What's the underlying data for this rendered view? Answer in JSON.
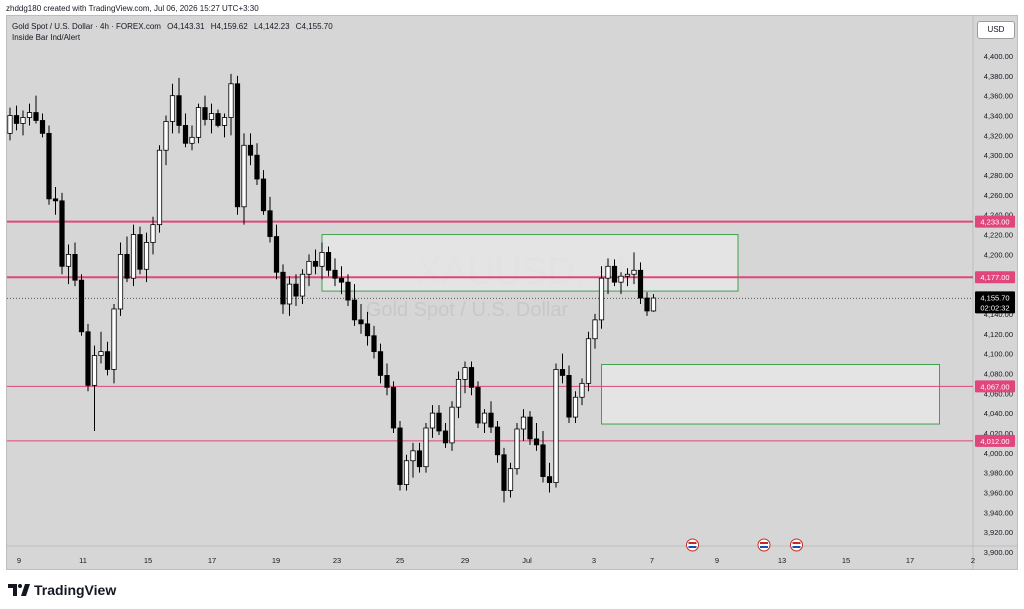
{
  "header": {
    "created_line": "zhddg180 created with TradingView.com, Jul 06, 2026 15:27 UTC+3:30",
    "symbol_line": "Gold Spot / U.S. Dollar · 4h · FOREX.com",
    "ohlc": {
      "o": "O4,143.31",
      "h": "H4,159.62",
      "l": "L4,142.23",
      "c": "C4,155.70"
    },
    "indicator": "Inside Bar Ind/Alert",
    "currency_button": "USD"
  },
  "watermark": {
    "symbol": "XAUUSD, 4h",
    "name": "Gold Spot / U.S. Dollar"
  },
  "footer": {
    "brand": "TradingView"
  },
  "colors": {
    "level_line": "#e0457b",
    "zone_border": "#3fa34d",
    "candle": "#000000",
    "background": "#d6d6d6"
  },
  "chart_data": {
    "type": "candlestick",
    "x_labels": [
      "9",
      "11",
      "15",
      "17",
      "19",
      "23",
      "25",
      "29",
      "Jul",
      "3",
      "7",
      "9",
      "13",
      "15",
      "17",
      "2"
    ],
    "y_ticks": [
      "4,400.00",
      "4,380.00",
      "4,360.00",
      "4,340.00",
      "4,320.00",
      "4,300.00",
      "4,280.00",
      "4,260.00",
      "4,240.00",
      "4,220.00",
      "4,200.00",
      "4,180.00",
      "4,160.00",
      "4,140.00",
      "4,120.00",
      "4,100.00",
      "4,080.00",
      "4,060.00",
      "4,040.00",
      "4,020.00",
      "4,000.00",
      "3,980.00",
      "3,960.00",
      "3,940.00",
      "3,920.00",
      "3,900.00"
    ],
    "ylim": [
      3900,
      4400
    ],
    "levels": [
      {
        "value": 4233,
        "label": "4,233.00"
      },
      {
        "value": 4177,
        "label": "4,177.00"
      },
      {
        "value": 4067,
        "label": "4,067.00"
      },
      {
        "value": 4012,
        "label": "4,012.00"
      }
    ],
    "last_price": {
      "value": 4155.7,
      "label": "4,155.70",
      "countdown": "02:02:32"
    },
    "zones": [
      {
        "from_index": 48,
        "to_index": 112,
        "top": 4220,
        "bottom": 4163
      },
      {
        "from_index": 91,
        "to_index": 143,
        "top": 4089,
        "bottom": 4029
      }
    ],
    "events": [
      {
        "index": 105
      },
      {
        "index": 116
      },
      {
        "index": 121
      }
    ],
    "candles": [
      [
        4322,
        4348,
        4315,
        4340
      ],
      [
        4340,
        4350,
        4325,
        4332
      ],
      [
        4332,
        4345,
        4320,
        4338
      ],
      [
        4338,
        4352,
        4330,
        4343
      ],
      [
        4343,
        4360,
        4332,
        4335
      ],
      [
        4335,
        4342,
        4318,
        4322
      ],
      [
        4322,
        4330,
        4250,
        4256
      ],
      [
        4256,
        4268,
        4240,
        4254
      ],
      [
        4254,
        4262,
        4180,
        4188
      ],
      [
        4188,
        4210,
        4170,
        4200
      ],
      [
        4200,
        4212,
        4168,
        4174
      ],
      [
        4174,
        4180,
        4118,
        4122
      ],
      [
        4122,
        4130,
        4062,
        4068
      ],
      [
        4068,
        4108,
        4022,
        4098
      ],
      [
        4098,
        4122,
        4090,
        4102
      ],
      [
        4102,
        4112,
        4078,
        4084
      ],
      [
        4084,
        4150,
        4070,
        4145
      ],
      [
        4145,
        4212,
        4138,
        4200
      ],
      [
        4200,
        4218,
        4172,
        4176
      ],
      [
        4176,
        4230,
        4168,
        4220
      ],
      [
        4220,
        4228,
        4180,
        4185
      ],
      [
        4185,
        4222,
        4172,
        4212
      ],
      [
        4212,
        4238,
        4200,
        4230
      ],
      [
        4230,
        4310,
        4222,
        4305
      ],
      [
        4305,
        4340,
        4290,
        4334
      ],
      [
        4334,
        4372,
        4322,
        4360
      ],
      [
        4360,
        4378,
        4322,
        4330
      ],
      [
        4330,
        4342,
        4308,
        4312
      ],
      [
        4312,
        4330,
        4305,
        4318
      ],
      [
        4318,
        4352,
        4312,
        4348
      ],
      [
        4348,
        4360,
        4330,
        4336
      ],
      [
        4336,
        4352,
        4322,
        4342
      ],
      [
        4342,
        4346,
        4328,
        4330
      ],
      [
        4330,
        4342,
        4318,
        4338
      ],
      [
        4338,
        4382,
        4320,
        4372
      ],
      [
        4372,
        4380,
        4240,
        4248
      ],
      [
        4248,
        4322,
        4230,
        4310
      ],
      [
        4310,
        4322,
        4290,
        4300
      ],
      [
        4300,
        4312,
        4270,
        4276
      ],
      [
        4276,
        4285,
        4240,
        4244
      ],
      [
        4244,
        4258,
        4212,
        4218
      ],
      [
        4218,
        4230,
        4175,
        4182
      ],
      [
        4182,
        4190,
        4140,
        4150
      ],
      [
        4150,
        4178,
        4138,
        4170
      ],
      [
        4170,
        4180,
        4148,
        4158
      ],
      [
        4158,
        4185,
        4150,
        4180
      ],
      [
        4180,
        4200,
        4168,
        4193
      ],
      [
        4193,
        4205,
        4180,
        4188
      ],
      [
        4188,
        4212,
        4175,
        4202
      ],
      [
        4202,
        4208,
        4178,
        4184
      ],
      [
        4184,
        4196,
        4168,
        4176
      ],
      [
        4176,
        4188,
        4160,
        4172
      ],
      [
        4172,
        4180,
        4148,
        4154
      ],
      [
        4154,
        4170,
        4128,
        4134
      ],
      [
        4134,
        4150,
        4120,
        4130
      ],
      [
        4130,
        4142,
        4108,
        4118
      ],
      [
        4118,
        4128,
        4095,
        4102
      ],
      [
        4102,
        4110,
        4070,
        4078
      ],
      [
        4078,
        4090,
        4058,
        4066
      ],
      [
        4066,
        4072,
        4020,
        4025
      ],
      [
        4025,
        4032,
        3962,
        3968
      ],
      [
        3968,
        3998,
        3962,
        3992
      ],
      [
        3992,
        4010,
        3975,
        4002
      ],
      [
        4002,
        4010,
        3980,
        3986
      ],
      [
        3986,
        4030,
        3980,
        4025
      ],
      [
        4025,
        4048,
        4015,
        4040
      ],
      [
        4040,
        4048,
        4018,
        4022
      ],
      [
        4022,
        4030,
        4005,
        4010
      ],
      [
        4010,
        4052,
        4002,
        4046
      ],
      [
        4046,
        4082,
        4035,
        4074
      ],
      [
        4074,
        4092,
        4060,
        4086
      ],
      [
        4086,
        4092,
        4058,
        4066
      ],
      [
        4066,
        4072,
        4025,
        4030
      ],
      [
        4030,
        4044,
        4020,
        4040
      ],
      [
        4040,
        4052,
        4020,
        4026
      ],
      [
        4026,
        4032,
        3990,
        3998
      ],
      [
        3998,
        4005,
        3950,
        3962
      ],
      [
        3962,
        3990,
        3955,
        3984
      ],
      [
        3984,
        4030,
        3978,
        4024
      ],
      [
        4024,
        4044,
        4012,
        4036
      ],
      [
        4036,
        4042,
        4008,
        4014
      ],
      [
        4014,
        4030,
        4002,
        4008
      ],
      [
        4008,
        4022,
        3970,
        3976
      ],
      [
        3976,
        3990,
        3960,
        3970
      ],
      [
        3970,
        4090,
        3965,
        4084
      ],
      [
        4084,
        4100,
        4070,
        4078
      ],
      [
        4078,
        4088,
        4030,
        4036
      ],
      [
        4036,
        4062,
        4030,
        4056
      ],
      [
        4056,
        4075,
        4048,
        4070
      ],
      [
        4070,
        4122,
        4062,
        4115
      ],
      [
        4115,
        4140,
        4105,
        4134
      ],
      [
        4134,
        4188,
        4125,
        4176
      ],
      [
        4176,
        4196,
        4160,
        4188
      ],
      [
        4188,
        4195,
        4168,
        4172
      ],
      [
        4172,
        4182,
        4160,
        4178
      ],
      [
        4178,
        4186,
        4168,
        4180
      ],
      [
        4180,
        4202,
        4170,
        4184
      ],
      [
        4184,
        4192,
        4150,
        4156
      ],
      [
        4156,
        4162,
        4138,
        4143
      ],
      [
        4143,
        4160,
        4142,
        4156
      ]
    ]
  }
}
